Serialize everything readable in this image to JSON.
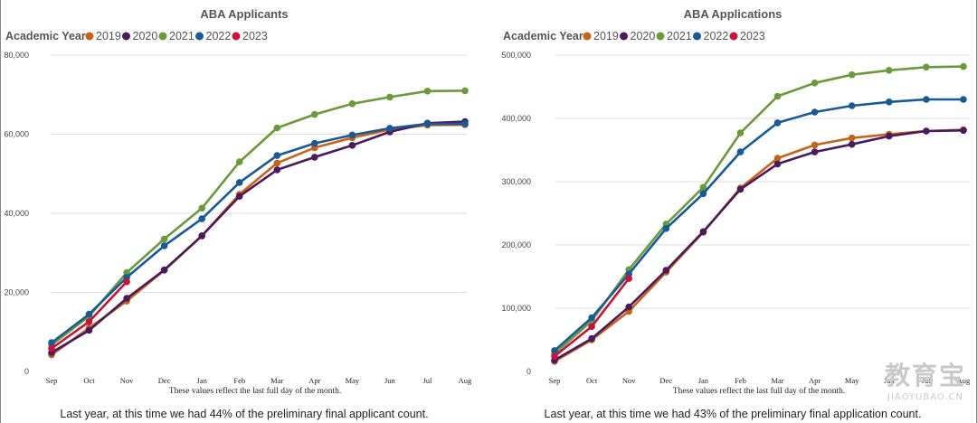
{
  "colors": {
    "2019": "#c8621a",
    "2020": "#4a1a5c",
    "2021": "#6a9a3c",
    "2022": "#175a96",
    "2023": "#c4163c"
  },
  "legend_title": "Academic Year",
  "note": "These values reflect the last full day of the month.",
  "watermark": {
    "cn": "教育宝",
    "en": "JIAOYUBAO.CN"
  },
  "chart_data": [
    {
      "type": "line",
      "title": "ABA Applicants",
      "categories": [
        "Sep",
        "Oct",
        "Nov",
        "Dec",
        "Jan",
        "Feb",
        "Mar",
        "Apr",
        "May",
        "Jun",
        "Jul",
        "Aug"
      ],
      "ylim": [
        0,
        80000
      ],
      "yticks": [
        0,
        20000,
        40000,
        60000,
        80000
      ],
      "ytick_labels": [
        "0",
        "20,000",
        "40,000",
        "60,000",
        "80,000"
      ],
      "grid": true,
      "legend_position": "top-left",
      "series": [
        {
          "name": "2019",
          "values": [
            4200,
            11000,
            17800,
            25600,
            34300,
            44800,
            52700,
            56600,
            59100,
            61200,
            62300,
            62400
          ]
        },
        {
          "name": "2020",
          "values": [
            4800,
            10400,
            18500,
            25700,
            34300,
            44300,
            51000,
            54200,
            57200,
            60600,
            62800,
            63200
          ]
        },
        {
          "name": "2021",
          "values": [
            6700,
            14000,
            25000,
            33500,
            41300,
            53000,
            61600,
            65000,
            67700,
            69400,
            70900,
            71000
          ]
        },
        {
          "name": "2022",
          "values": [
            7300,
            14500,
            23800,
            31800,
            38600,
            47800,
            54600,
            57700,
            59800,
            61500,
            62600,
            62600
          ]
        },
        {
          "name": "2023",
          "values": [
            5800,
            12600,
            22700,
            null,
            null,
            null,
            null,
            null,
            null,
            null,
            null,
            null
          ]
        }
      ],
      "caption": "Last year, at this time we had 44% of the preliminary final applicant count."
    },
    {
      "type": "line",
      "title": "ABA Applications",
      "categories": [
        "Sep",
        "Oct",
        "Nov",
        "Dec",
        "Jan",
        "Feb",
        "Mar",
        "Apr",
        "May",
        "Jun",
        "Jul",
        "Aug"
      ],
      "ylim": [
        0,
        500000
      ],
      "yticks": [
        0,
        100000,
        200000,
        300000,
        400000,
        500000
      ],
      "ytick_labels": [
        "0",
        "100,000",
        "200,000",
        "300,000",
        "400,000",
        "500,000"
      ],
      "grid": true,
      "legend_position": "top-left",
      "series": [
        {
          "name": "2019",
          "values": [
            16000,
            50000,
            95000,
            157000,
            220000,
            290000,
            337000,
            358000,
            369000,
            375000,
            380000,
            382000
          ]
        },
        {
          "name": "2020",
          "values": [
            18000,
            52000,
            102000,
            160000,
            221000,
            288000,
            328000,
            347000,
            359000,
            372000,
            380000,
            381000
          ]
        },
        {
          "name": "2021",
          "values": [
            28000,
            80000,
            161000,
            233000,
            291000,
            377000,
            435000,
            456000,
            469000,
            476000,
            481000,
            482000
          ]
        },
        {
          "name": "2022",
          "values": [
            33000,
            85000,
            154000,
            226000,
            281000,
            347000,
            393000,
            410000,
            420000,
            426000,
            430000,
            430000
          ]
        },
        {
          "name": "2023",
          "values": [
            24000,
            71000,
            147000,
            null,
            null,
            null,
            null,
            null,
            null,
            null,
            null,
            null
          ]
        }
      ],
      "caption": "Last year, at this time we had 43% of the preliminary final application count."
    }
  ]
}
